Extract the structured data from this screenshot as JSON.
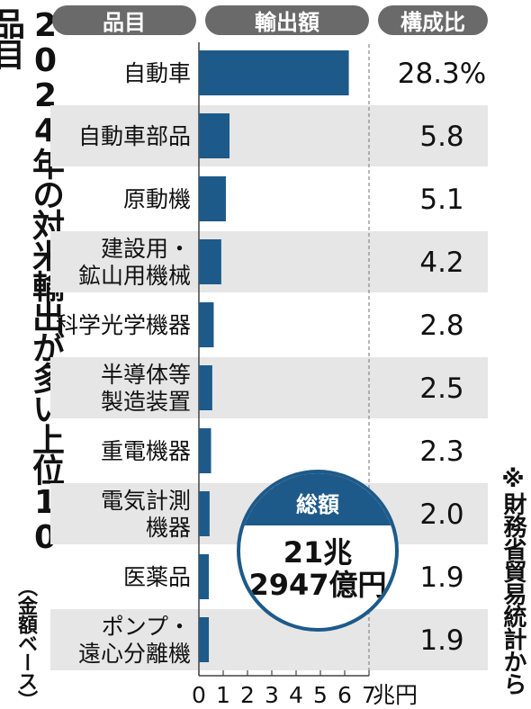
{
  "title": "2024年の対米輸出が多い上位10品目",
  "subtitle": "（金額ベース）",
  "source": "※財務省貿易統計から",
  "headers": {
    "item": "品目",
    "export": "輸出額",
    "share": "構成比"
  },
  "total": {
    "label": "総額",
    "line1": "21兆",
    "line2": "2947億円"
  },
  "colors": {
    "bar": "#1d5a8a",
    "stripe": "#e6e6e6",
    "header": "#6a6a6a"
  },
  "chart_data": {
    "type": "bar",
    "orientation": "horizontal",
    "categories": [
      [
        "自動車"
      ],
      [
        "自動車部品"
      ],
      [
        "原動機"
      ],
      [
        "建設用・",
        "鉱山用機械"
      ],
      [
        "科学光学機器"
      ],
      [
        "半導体等",
        "製造装置"
      ],
      [
        "重電機器"
      ],
      [
        "電気計測",
        "機器"
      ],
      [
        "医薬品"
      ],
      [
        "ポンプ・",
        "遠心分離機"
      ]
    ],
    "values": [
      6.17,
      1.26,
      1.11,
      0.92,
      0.61,
      0.55,
      0.5,
      0.44,
      0.41,
      0.41
    ],
    "shares": [
      "28.3%",
      "5.8",
      "5.1",
      "4.2",
      "2.8",
      "2.5",
      "2.3",
      "2.0",
      "1.9",
      "1.9"
    ],
    "xlim": [
      0,
      7
    ],
    "xticks": [
      "0",
      "1",
      "2",
      "3",
      "4",
      "5",
      "6",
      "7"
    ],
    "xunit": "兆円"
  }
}
